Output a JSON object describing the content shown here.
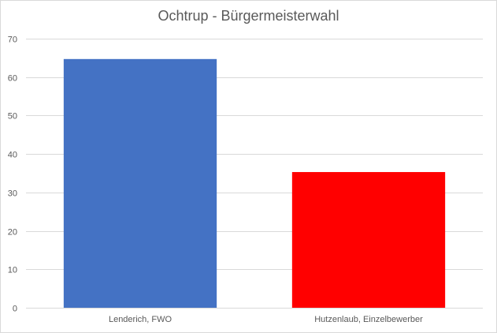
{
  "chart_data": {
    "type": "bar",
    "title": "Ochtrup - Bürgermeisterwahl",
    "categories": [
      "Lenderich, FWO",
      "Hutzenlaub, Einzelbewerber"
    ],
    "values": [
      64.7,
      35.3
    ],
    "bar_colors": [
      "#4472c4",
      "#ff0000"
    ],
    "ylim": [
      0,
      70
    ],
    "yticks": [
      0,
      10,
      20,
      30,
      40,
      50,
      60,
      70
    ],
    "xlabel": "",
    "ylabel": "",
    "grid": true,
    "legend": "none",
    "gridline_color": "#d9d9d9",
    "text_color": "#595959"
  }
}
